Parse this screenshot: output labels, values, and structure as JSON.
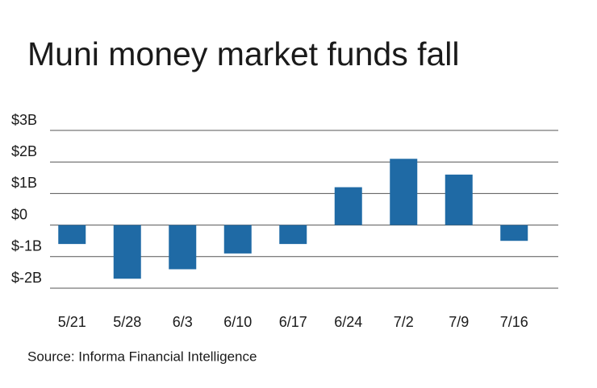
{
  "chart_data": {
    "type": "bar",
    "title": "Muni money market funds fall",
    "source": "Source: Informa Financial Intelligence",
    "categories": [
      "5/21",
      "5/28",
      "6/3",
      "6/10",
      "6/17",
      "6/24",
      "7/2",
      "7/9",
      "7/16"
    ],
    "values": [
      -0.6,
      -1.7,
      -1.4,
      -0.9,
      -0.6,
      1.2,
      2.1,
      1.6,
      -0.5
    ],
    "color": "#1f6aa5",
    "ylim": [
      -2,
      3
    ],
    "yticks": [
      {
        "value": 3,
        "label": "$3B"
      },
      {
        "value": 2,
        "label": "$2B"
      },
      {
        "value": 1,
        "label": "$1B"
      },
      {
        "value": 0,
        "label": "$0"
      },
      {
        "value": -1,
        "label": "$-1B"
      },
      {
        "value": -2,
        "label": "$-2B"
      }
    ],
    "grid": true
  }
}
